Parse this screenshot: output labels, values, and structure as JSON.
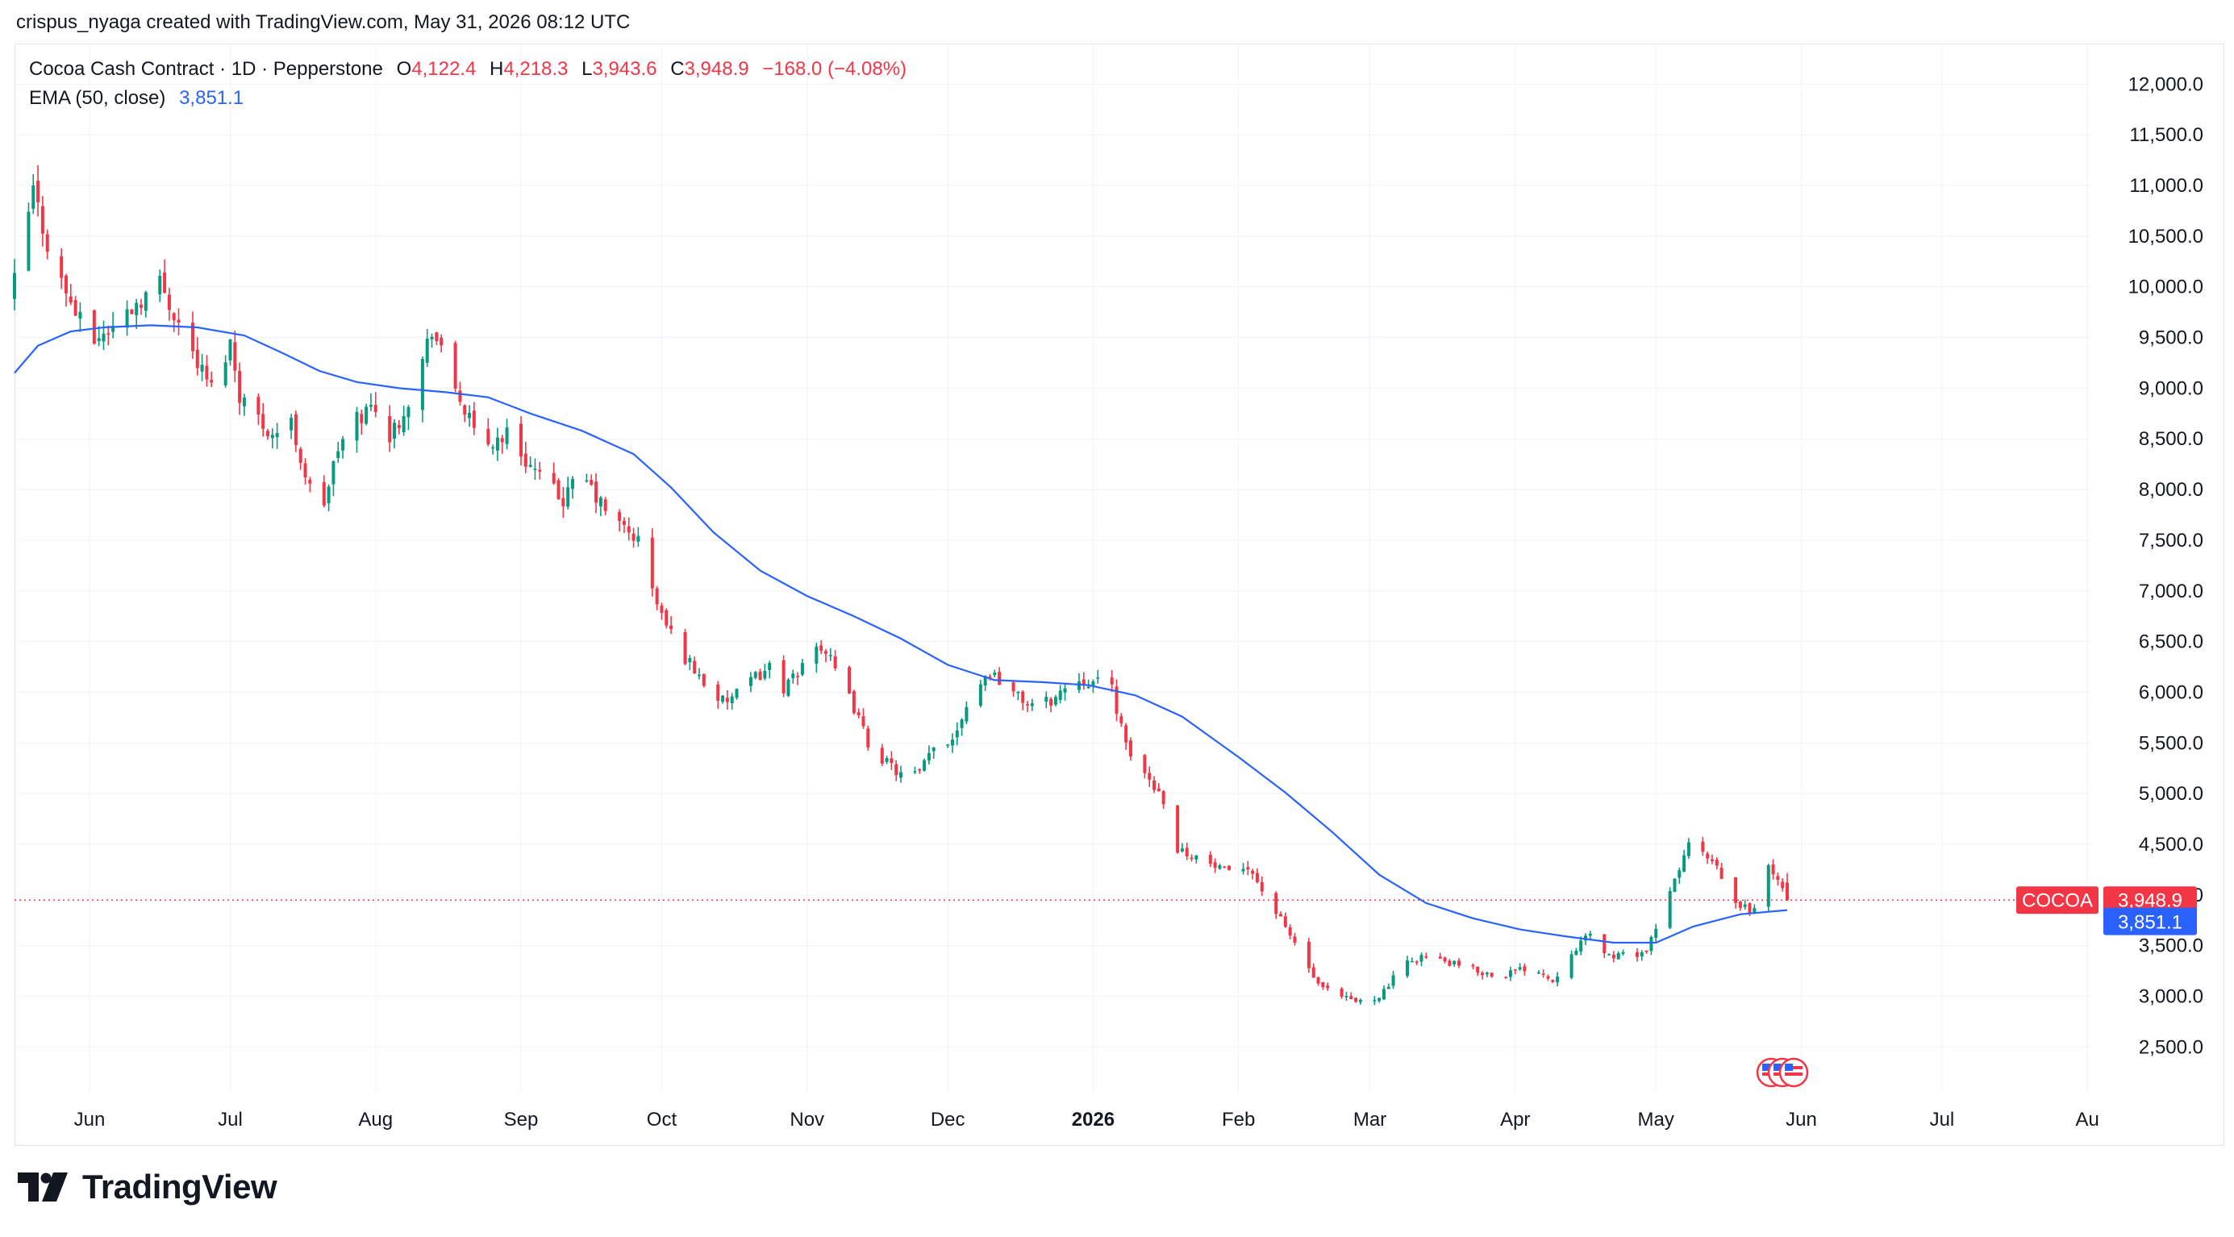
{
  "header": {
    "caption": "crispus_nyaga created with TradingView.com, May 31, 2026 08:12 UTC"
  },
  "legend": {
    "symbol_line": "Cocoa Cash Contract · 1D · Pepperstone",
    "open_label": "O",
    "open": "4,122.4",
    "high_label": "H",
    "high": "4,218.3",
    "low_label": "L",
    "low": "3,943.6",
    "close_label": "C",
    "close": "3,948.9",
    "change": "−168.0 (−4.08%)",
    "ema_label": "EMA (50, close)",
    "ema_value": "3,851.1"
  },
  "price_tags": {
    "symbol": "COCOA",
    "last_price": "3,948.9",
    "ema_price": "3,851.1"
  },
  "footer": {
    "brand": "TradingView",
    "logo_icon": "tradingview-logo-icon"
  },
  "chart_data": {
    "type": "candlestick",
    "instrument": "Cocoa Cash Contract",
    "interval": "1D",
    "source": "Pepperstone",
    "ylim": [
      2050,
      12400
    ],
    "y_ticks": [
      "12,000.0",
      "11,500.0",
      "11,000.0",
      "10,500.0",
      "10,000.0",
      "9,500.0",
      "9,000.0",
      "8,500.0",
      "8,000.0",
      "7,500.0",
      "7,000.0",
      "6,500.0",
      "6,000.0",
      "5,500.0",
      "5,000.0",
      "4,500.0",
      "4,000.0",
      "3,500.0",
      "3,000.0",
      "2,500.0"
    ],
    "y_tick_values": [
      12000,
      11500,
      11000,
      10500,
      10000,
      9500,
      9000,
      8500,
      8000,
      7500,
      7000,
      6500,
      6000,
      5500,
      5000,
      4500,
      4000,
      3500,
      3000,
      2500
    ],
    "x_ticks": [
      {
        "label": "Jun",
        "date": "2025-06-01",
        "bold": false
      },
      {
        "label": "Jul",
        "date": "2025-07-01",
        "bold": false
      },
      {
        "label": "Aug",
        "date": "2025-08-01",
        "bold": false
      },
      {
        "label": "Sep",
        "date": "2025-09-01",
        "bold": false
      },
      {
        "label": "Oct",
        "date": "2025-10-01",
        "bold": false
      },
      {
        "label": "Nov",
        "date": "2025-11-01",
        "bold": false
      },
      {
        "label": "Dec",
        "date": "2025-12-01",
        "bold": false
      },
      {
        "label": "2026",
        "date": "2026-01-01",
        "bold": true
      },
      {
        "label": "Feb",
        "date": "2026-02-01",
        "bold": false
      },
      {
        "label": "Mar",
        "date": "2026-03-01",
        "bold": false
      },
      {
        "label": "Apr",
        "date": "2026-04-01",
        "bold": false
      },
      {
        "label": "May",
        "date": "2026-05-01",
        "bold": false
      },
      {
        "label": "Jun",
        "date": "2026-06-01",
        "bold": false
      },
      {
        "label": "Jul",
        "date": "2026-07-01",
        "bold": false
      },
      {
        "label": "Au",
        "date": "2026-08-01",
        "bold": false
      }
    ],
    "x_start": "2025-05-16",
    "x_end": "2026-08-02",
    "close_path": [
      [
        "2025-05-16",
        10050
      ],
      [
        "2025-05-20",
        10950
      ],
      [
        "2025-05-24",
        10250
      ],
      [
        "2025-05-28",
        9850
      ],
      [
        "2025-06-01",
        9450
      ],
      [
        "2025-06-06",
        9600
      ],
      [
        "2025-06-11",
        9850
      ],
      [
        "2025-06-16",
        10050
      ],
      [
        "2025-06-20",
        9650
      ],
      [
        "2025-06-24",
        9250
      ],
      [
        "2025-06-27",
        9000
      ],
      [
        "2025-07-01",
        9450
      ],
      [
        "2025-07-03",
        8950
      ],
      [
        "2025-07-06",
        8750
      ],
      [
        "2025-07-10",
        8550
      ],
      [
        "2025-07-14",
        8650
      ],
      [
        "2025-07-17",
        8150
      ],
      [
        "2025-07-20",
        7700
      ],
      [
        "2025-07-24",
        8400
      ],
      [
        "2025-07-28",
        8700
      ],
      [
        "2025-08-01",
        8850
      ],
      [
        "2025-08-04",
        8500
      ],
      [
        "2025-08-07",
        8800
      ],
      [
        "2025-08-10",
        9100
      ],
      [
        "2025-08-13",
        9600
      ],
      [
        "2025-08-16",
        9200
      ],
      [
        "2025-08-19",
        8900
      ],
      [
        "2025-08-22",
        8550
      ],
      [
        "2025-08-25",
        8450
      ],
      [
        "2025-08-29",
        8550
      ],
      [
        "2025-09-02",
        8300
      ],
      [
        "2025-09-06",
        8050
      ],
      [
        "2025-09-10",
        7900
      ],
      [
        "2025-09-14",
        8150
      ],
      [
        "2025-09-18",
        7850
      ],
      [
        "2025-09-22",
        7650
      ],
      [
        "2025-09-26",
        7500
      ],
      [
        "2025-09-29",
        7000
      ],
      [
        "2025-10-02",
        6650
      ],
      [
        "2025-10-06",
        6350
      ],
      [
        "2025-10-10",
        6100
      ],
      [
        "2025-10-14",
        5900
      ],
      [
        "2025-10-18",
        6000
      ],
      [
        "2025-10-21",
        6150
      ],
      [
        "2025-10-24",
        6250
      ],
      [
        "2025-10-27",
        6050
      ],
      [
        "2025-10-30",
        6150
      ],
      [
        "2025-11-02",
        6550
      ],
      [
        "2025-11-05",
        6400
      ],
      [
        "2025-11-08",
        6100
      ],
      [
        "2025-11-11",
        5850
      ],
      [
        "2025-11-14",
        5500
      ],
      [
        "2025-11-18",
        5300
      ],
      [
        "2025-11-22",
        5150
      ],
      [
        "2025-11-25",
        5200
      ],
      [
        "2025-11-28",
        5450
      ],
      [
        "2025-12-02",
        5550
      ],
      [
        "2025-12-06",
        6000
      ],
      [
        "2025-12-10",
        6200
      ],
      [
        "2025-12-13",
        6100
      ],
      [
        "2025-12-16",
        5950
      ],
      [
        "2025-12-20",
        5850
      ],
      [
        "2025-12-24",
        5950
      ],
      [
        "2025-12-28",
        6150
      ],
      [
        "2026-01-01",
        6100
      ],
      [
        "2026-01-05",
        6050
      ],
      [
        "2026-01-08",
        5450
      ],
      [
        "2026-01-12",
        5200
      ],
      [
        "2026-01-16",
        4950
      ],
      [
        "2026-01-19",
        4450
      ],
      [
        "2026-01-22",
        4400
      ],
      [
        "2026-01-26",
        4300
      ],
      [
        "2026-01-30",
        4200
      ],
      [
        "2026-02-03",
        4300
      ],
      [
        "2026-02-06",
        4050
      ],
      [
        "2026-02-10",
        3750
      ],
      [
        "2026-02-14",
        3450
      ],
      [
        "2026-02-18",
        3100
      ],
      [
        "2026-02-22",
        3000
      ],
      [
        "2026-02-26",
        2950
      ],
      [
        "2026-03-01",
        2950
      ],
      [
        "2026-03-04",
        3050
      ],
      [
        "2026-03-08",
        3300
      ],
      [
        "2026-03-12",
        3400
      ],
      [
        "2026-03-16",
        3350
      ],
      [
        "2026-03-20",
        3300
      ],
      [
        "2026-03-24",
        3250
      ],
      [
        "2026-03-28",
        3200
      ],
      [
        "2026-04-01",
        3250
      ],
      [
        "2026-04-05",
        3300
      ],
      [
        "2026-04-09",
        3150
      ],
      [
        "2026-04-13",
        3450
      ],
      [
        "2026-04-17",
        3600
      ],
      [
        "2026-04-21",
        3400
      ],
      [
        "2026-04-25",
        3400
      ],
      [
        "2026-04-29",
        3450
      ],
      [
        "2026-05-02",
        3750
      ],
      [
        "2026-05-05",
        4150
      ],
      [
        "2026-05-08",
        4500
      ],
      [
        "2026-05-11",
        4400
      ],
      [
        "2026-05-14",
        4250
      ],
      [
        "2026-05-18",
        3900
      ],
      [
        "2026-05-22",
        3850
      ],
      [
        "2026-05-25",
        4300
      ],
      [
        "2026-05-29",
        3948.9
      ]
    ],
    "ema_path": [
      [
        "2025-05-16",
        9150
      ],
      [
        "2025-05-21",
        9420
      ],
      [
        "2025-05-28",
        9560
      ],
      [
        "2025-06-04",
        9600
      ],
      [
        "2025-06-14",
        9620
      ],
      [
        "2025-06-24",
        9600
      ],
      [
        "2025-07-04",
        9520
      ],
      [
        "2025-07-12",
        9350
      ],
      [
        "2025-07-20",
        9170
      ],
      [
        "2025-07-28",
        9060
      ],
      [
        "2025-08-06",
        9000
      ],
      [
        "2025-08-16",
        8960
      ],
      [
        "2025-08-25",
        8910
      ],
      [
        "2025-09-03",
        8750
      ],
      [
        "2025-09-14",
        8580
      ],
      [
        "2025-09-25",
        8350
      ],
      [
        "2025-10-03",
        8020
      ],
      [
        "2025-10-12",
        7580
      ],
      [
        "2025-10-22",
        7200
      ],
      [
        "2025-11-01",
        6950
      ],
      [
        "2025-11-11",
        6750
      ],
      [
        "2025-11-21",
        6530
      ],
      [
        "2025-12-01",
        6270
      ],
      [
        "2025-12-11",
        6120
      ],
      [
        "2025-12-21",
        6100
      ],
      [
        "2025-12-31",
        6070
      ],
      [
        "2026-01-10",
        5970
      ],
      [
        "2026-01-20",
        5760
      ],
      [
        "2026-02-01",
        5360
      ],
      [
        "2026-02-11",
        5010
      ],
      [
        "2026-02-21",
        4620
      ],
      [
        "2026-03-03",
        4200
      ],
      [
        "2026-03-13",
        3920
      ],
      [
        "2026-03-23",
        3770
      ],
      [
        "2026-04-02",
        3660
      ],
      [
        "2026-04-12",
        3590
      ],
      [
        "2026-04-22",
        3530
      ],
      [
        "2026-05-01",
        3530
      ],
      [
        "2026-05-09",
        3690
      ],
      [
        "2026-05-19",
        3810
      ],
      [
        "2026-05-29",
        3851.1
      ]
    ],
    "last_close": 3948.9,
    "ema_last": 3851.1,
    "events_marker": {
      "date": "2026-05-29",
      "icon": "us-flag-events-icon"
    },
    "colors": {
      "up": "#089981",
      "down": "#f23645",
      "ema": "#2962ff",
      "grid": "#f0f3fa",
      "text": "#131722",
      "last_line": "#f23645"
    }
  }
}
